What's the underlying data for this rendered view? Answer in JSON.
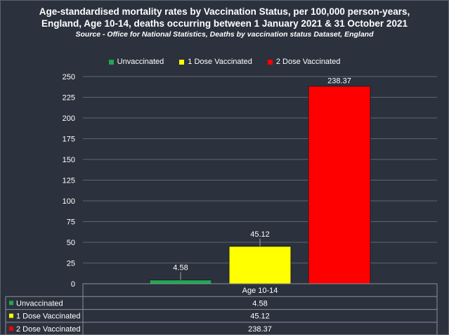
{
  "title_line1": "Age-standardised mortality rates by Vaccination Status, per 100,000 person-years,",
  "title_line2": "England, Age 10-14, deaths occurring between 1 January 2021 & 31 October 2021",
  "source": "Source - Office for National Statistics, Deaths by vaccination status Dataset, England",
  "chart_data": {
    "type": "bar",
    "categories": [
      "Age 10-14"
    ],
    "series": [
      {
        "name": "Unvaccinated",
        "values": [
          4.58
        ],
        "color": "#1fa84f"
      },
      {
        "name": "1 Dose Vaccinated",
        "values": [
          45.12
        ],
        "color": "#ffff00"
      },
      {
        "name": "2 Dose Vaccinated",
        "values": [
          238.37
        ],
        "color": "#ff0000"
      }
    ],
    "data_labels": [
      "4.58",
      "45.12",
      "238.37"
    ],
    "yticks": [
      "0",
      "25",
      "50",
      "75",
      "100",
      "125",
      "150",
      "175",
      "200",
      "225",
      "250"
    ],
    "ylim": [
      0,
      250
    ],
    "grid": true,
    "legend_position": "top",
    "data_table": true
  }
}
